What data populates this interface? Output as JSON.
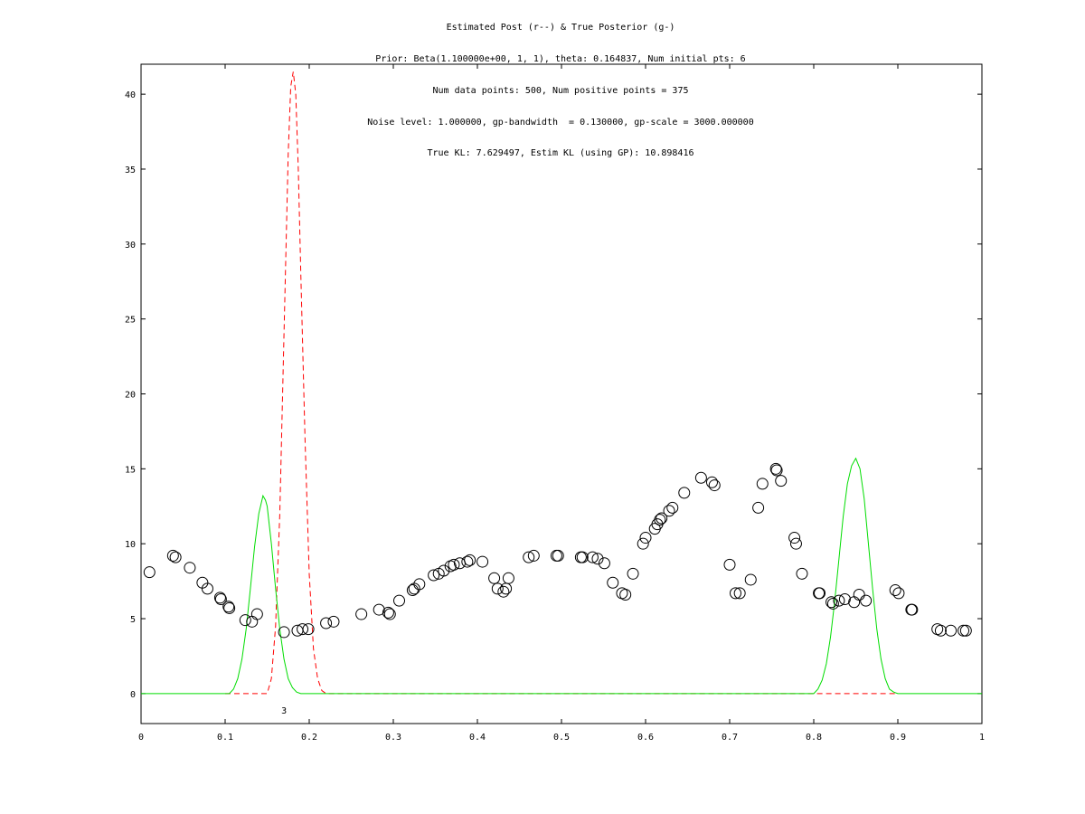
{
  "title_lines": [
    "Estimated Post (r--) & True Posterior (g-)",
    "Prior: Beta(1.100000e+00, 1, 1), theta: 0.164837, Num initial pts: 6",
    "Num data points: 500, Num positive points = 375",
    "Noise level: 1.000000, gp-bandwidth  = 0.130000, gp-scale = 3000.000000",
    "True KL: 7.629497, Estim KL (using GP): 10.898416"
  ],
  "chart_data": {
    "type": "line",
    "xlim": [
      0,
      1
    ],
    "ylim": [
      -2,
      42
    ],
    "x_ticks": [
      0,
      0.1,
      0.2,
      0.3,
      0.4,
      0.5,
      0.6,
      0.7,
      0.8,
      0.9,
      1
    ],
    "x_tick_labels": [
      "0",
      "0.1",
      "0.2",
      "0.3",
      "0.4",
      "0.5",
      "0.6",
      "0.7",
      "0.8",
      "0.9",
      "1"
    ],
    "y_ticks": [
      0,
      5,
      10,
      15,
      20,
      25,
      30,
      35,
      40
    ],
    "y_tick_labels": [
      "0",
      "5",
      "10",
      "15",
      "20",
      "25",
      "30",
      "35",
      "40"
    ],
    "grid": false,
    "colors": {
      "estimated": "#ff0000",
      "true": "#00dd00",
      "points": "#000000"
    },
    "series": [
      {
        "style": "red-dashed",
        "x": [
          0.1,
          0.15,
          0.155,
          0.16,
          0.165,
          0.17,
          0.175,
          0.178,
          0.181,
          0.184,
          0.187,
          0.19,
          0.195,
          0.2,
          0.205,
          0.21,
          0.215,
          0.22,
          0.8,
          0.9
        ],
        "y": [
          0,
          0,
          1.0,
          4.5,
          12,
          24,
          36,
          40.5,
          41.5,
          40,
          35,
          28,
          17,
          8,
          3,
          1,
          0.2,
          0,
          0,
          0
        ]
      },
      {
        "style": "green-solid",
        "x": [
          0,
          0.105,
          0.11,
          0.115,
          0.12,
          0.125,
          0.13,
          0.135,
          0.14,
          0.145,
          0.148,
          0.15,
          0.155,
          0.16,
          0.165,
          0.17,
          0.175,
          0.18,
          0.185,
          0.19,
          0.2,
          0.8,
          0.805,
          0.81,
          0.815,
          0.82,
          0.825,
          0.83,
          0.835,
          0.84,
          0.845,
          0.85,
          0.855,
          0.86,
          0.865,
          0.87,
          0.875,
          0.88,
          0.885,
          0.89,
          0.895,
          0.9,
          1
        ],
        "y": [
          0,
          0,
          0.3,
          1,
          2.3,
          4.3,
          7,
          9.8,
          12,
          13.2,
          12.9,
          12.5,
          10,
          7,
          4.3,
          2.3,
          1,
          0.4,
          0.1,
          0,
          0,
          0,
          0.3,
          0.9,
          2,
          3.8,
          6.2,
          9,
          11.8,
          14,
          15.2,
          15.7,
          15,
          13,
          10,
          7,
          4.3,
          2.3,
          1,
          0.3,
          0.1,
          0,
          0
        ]
      },
      {
        "style": "black-open-circles",
        "x": [
          0.01,
          0.038,
          0.041,
          0.058,
          0.073,
          0.079,
          0.094,
          0.095,
          0.104,
          0.105,
          0.124,
          0.132,
          0.138,
          0.17,
          0.186,
          0.192,
          0.199,
          0.22,
          0.229,
          0.262,
          0.283,
          0.294,
          0.296,
          0.307,
          0.323,
          0.325,
          0.331,
          0.348,
          0.354,
          0.36,
          0.368,
          0.372,
          0.379,
          0.388,
          0.391,
          0.406,
          0.42,
          0.424,
          0.431,
          0.434,
          0.437,
          0.461,
          0.467,
          0.494,
          0.496,
          0.523,
          0.525,
          0.537,
          0.543,
          0.551,
          0.561,
          0.572,
          0.576,
          0.585,
          0.597,
          0.6,
          0.611,
          0.614,
          0.617,
          0.619,
          0.628,
          0.632,
          0.646,
          0.666,
          0.679,
          0.682,
          0.7,
          0.707,
          0.712,
          0.725,
          0.734,
          0.739,
          0.755,
          0.756,
          0.761,
          0.777,
          0.779,
          0.786,
          0.806,
          0.807,
          0.821,
          0.823,
          0.83,
          0.837,
          0.848,
          0.854,
          0.862,
          0.897,
          0.901,
          0.916,
          0.917,
          0.947,
          0.951,
          0.963,
          0.978,
          0.981
        ],
        "y": [
          8.1,
          9.2,
          9.1,
          8.4,
          7.4,
          7.0,
          6.4,
          6.3,
          5.8,
          5.7,
          4.9,
          4.8,
          5.3,
          4.1,
          4.2,
          4.3,
          4.3,
          4.7,
          4.8,
          5.3,
          5.6,
          5.4,
          5.3,
          6.2,
          6.9,
          7.0,
          7.3,
          7.9,
          8.0,
          8.2,
          8.5,
          8.6,
          8.7,
          8.8,
          8.9,
          8.8,
          7.7,
          7.0,
          6.8,
          7.0,
          7.7,
          9.1,
          9.2,
          9.2,
          9.2,
          9.1,
          9.1,
          9.1,
          9.0,
          8.7,
          7.4,
          6.7,
          6.6,
          8.0,
          10.0,
          10.4,
          11.0,
          11.3,
          11.6,
          11.7,
          12.2,
          12.4,
          13.4,
          14.4,
          14.1,
          13.9,
          8.6,
          6.7,
          6.7,
          7.6,
          12.4,
          14.0,
          15.0,
          14.9,
          14.2,
          10.4,
          10.0,
          8.0,
          6.7,
          6.7,
          6.1,
          6.0,
          6.2,
          6.3,
          6.1,
          6.6,
          6.2,
          6.9,
          6.7,
          5.6,
          5.6,
          4.3,
          4.2,
          4.2,
          4.2,
          4.2
        ]
      }
    ],
    "annotations": [
      {
        "text": "3",
        "x": 0.17,
        "y": -1.1
      }
    ]
  }
}
